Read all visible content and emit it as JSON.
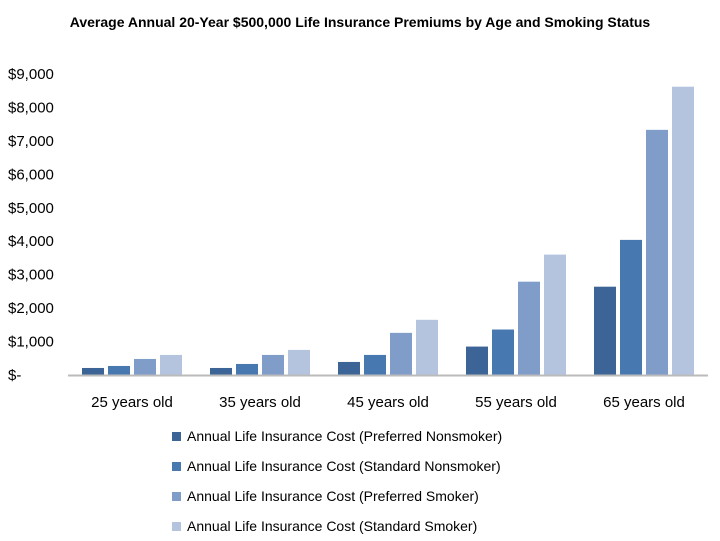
{
  "chart_data": {
    "type": "bar",
    "title": "Average Annual 20-Year $500,000 Life Insurance Premiums by Age and Smoking Status",
    "categories": [
      "25 years old",
      "35 years old",
      "45 years old",
      "55 years old",
      "65 years old"
    ],
    "yticks": [
      "$-",
      "$1,000",
      "$2,000",
      "$3,000",
      "$4,000",
      "$5,000",
      "$6,000",
      "$7,000",
      "$8,000",
      "$9,000"
    ],
    "ylim": [
      0,
      9000
    ],
    "grid": false,
    "legend_position": "bottom",
    "series": [
      {
        "name": "Annual Life Insurance Cost (Preferred Nonsmoker)",
        "color": "#3d6496",
        "values": [
          210,
          210,
          390,
          850,
          2640
        ]
      },
      {
        "name": "Annual Life Insurance Cost (Standard Nonsmoker)",
        "color": "#4878b0",
        "values": [
          270,
          330,
          600,
          1360,
          4040
        ]
      },
      {
        "name": "Annual Life Insurance Cost (Preferred Smoker)",
        "color": "#7f9dc8",
        "values": [
          480,
          600,
          1260,
          2790,
          7330
        ]
      },
      {
        "name": "Annual Life Insurance Cost (Standard Smoker)",
        "color": "#b4c4df",
        "values": [
          600,
          750,
          1650,
          3600,
          8620
        ]
      }
    ]
  }
}
